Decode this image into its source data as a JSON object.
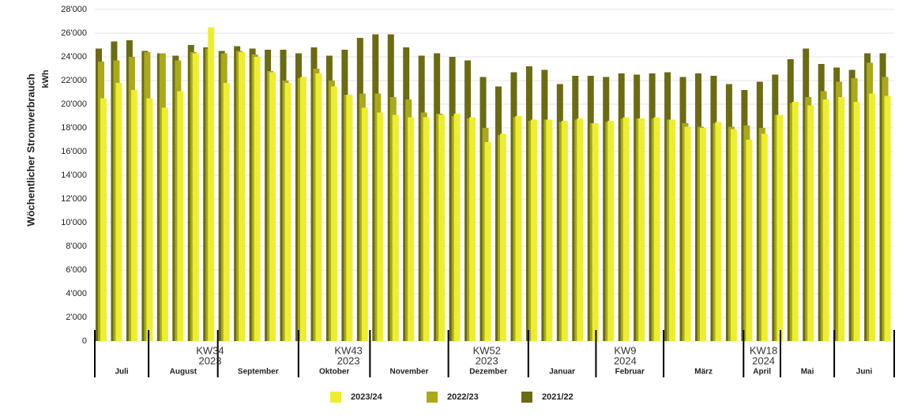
{
  "chart_data": {
    "type": "bar",
    "y_label": "Wöchentlicher Stromverbrauch",
    "y_unit": "kWh",
    "categories": [
      null,
      null,
      null,
      null,
      null,
      null,
      null,
      null,
      null,
      null,
      null,
      null,
      null,
      null,
      null,
      null,
      null,
      null,
      null,
      null,
      null,
      null,
      null,
      null,
      null,
      null,
      null,
      null,
      null,
      null,
      null,
      null,
      null,
      null,
      null,
      null,
      null,
      null,
      null,
      null,
      null,
      null,
      null,
      null,
      null,
      null,
      null,
      null,
      null,
      null,
      null,
      null
    ],
    "series": [
      {
        "name": "2021/22",
        "color": "#6b6b12",
        "values": [
          24700,
          25300,
          25400,
          24500,
          24300,
          24100,
          25000,
          24800,
          24500,
          24900,
          24700,
          24600,
          24600,
          24300,
          24800,
          24100,
          24600,
          25600,
          25900,
          25900,
          24800,
          24100,
          24300,
          24000,
          23700,
          22300,
          21500,
          22700,
          23200,
          22900,
          21700,
          22400,
          22400,
          22300,
          22600,
          22500,
          22600,
          22700,
          22300,
          22600,
          22400,
          21700,
          21200,
          21900,
          22500,
          23800,
          24700,
          23400,
          23100,
          22900,
          24300,
          24300
        ]
      },
      {
        "name": "2022/23",
        "color": "#a9a91a",
        "values": [
          23600,
          23700,
          24000,
          24400,
          24300,
          23700,
          24400,
          24700,
          24300,
          24500,
          24200,
          22800,
          22000,
          22200,
          23000,
          22000,
          20800,
          20900,
          20900,
          20600,
          20400,
          19300,
          19200,
          19000,
          18800,
          18000,
          17400,
          18900,
          18600,
          18700,
          18500,
          18700,
          18400,
          18500,
          18800,
          18800,
          18800,
          18700,
          18400,
          18100,
          18400,
          18100,
          18200,
          18000,
          19100,
          20100,
          20600,
          21100,
          21900,
          22200,
          23500,
          22300
        ]
      },
      {
        "name": "2023/24",
        "color": "#eeee30",
        "values": [
          20500,
          21800,
          21200,
          20500,
          19700,
          21100,
          24300,
          26500,
          21800,
          24400,
          24000,
          22700,
          21800,
          22300,
          22600,
          21500,
          20800,
          19700,
          19300,
          19100,
          18900,
          18900,
          19100,
          19200,
          18900,
          16800,
          17500,
          19000,
          18700,
          18700,
          18600,
          18800,
          18400,
          18600,
          18900,
          18800,
          18900,
          18700,
          18100,
          18000,
          18500,
          17900,
          17000,
          17500,
          19100,
          20200,
          19900,
          20400,
          20600,
          20200,
          20900,
          20700
        ]
      }
    ],
    "months": [
      "Juli",
      "August",
      "September",
      "Oktober",
      "November",
      "Dezember",
      "Januar",
      "Februar",
      "März",
      "April",
      "Mai",
      "Juni"
    ],
    "week_marks": [
      [
        "KW34",
        "2023"
      ],
      [
        "KW43",
        "2023"
      ],
      [
        "KW52",
        "2023"
      ],
      [
        "KW9",
        "2024"
      ],
      [
        "KW18",
        "2024"
      ]
    ],
    "ylim": [
      0,
      28000
    ],
    "yticks": [
      0,
      {
        "value": 2000,
        "label": "2'000"
      },
      {
        "value": 4000,
        "label": "4'000"
      },
      {
        "value": 6000,
        "label": "6'000"
      },
      {
        "value": 8000,
        "label": "8'000"
      },
      {
        "value": 10000,
        "label": "10'000"
      },
      {
        "value": 12000,
        "label": "12'000"
      },
      {
        "value": 14000,
        "label": "14'000"
      },
      {
        "value": 16000,
        "label": "16'000"
      },
      {
        "value": 18000,
        "label": "18'000"
      },
      {
        "value": 20000,
        "label": "20'000"
      },
      {
        "value": 22000,
        "label": "22'000"
      },
      {
        "value": 24000,
        "label": "24'000"
      },
      {
        "value": 26000,
        "label": "26'000"
      },
      {
        "value": 28000,
        "label": "28'000"
      }
    ],
    "grid": true
  }
}
